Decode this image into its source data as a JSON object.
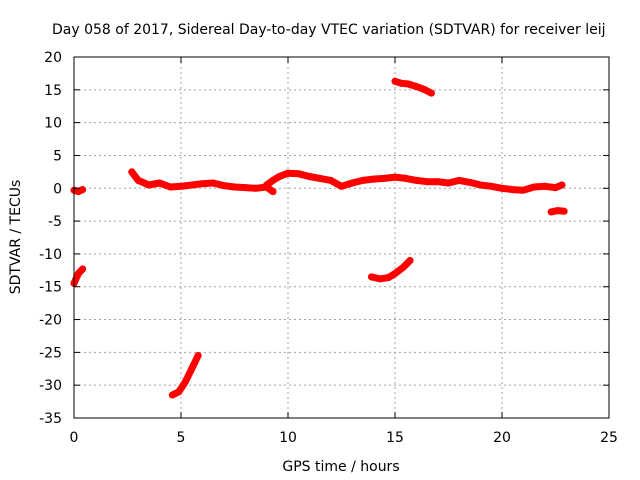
{
  "chart_data": {
    "type": "scatter",
    "title": "Day 058 of 2017, Sidereal Day-to-day VTEC variation (SDTVAR) for receiver leij",
    "xlabel": "GPS time / hours",
    "ylabel": "SDTVAR / TECUs",
    "xlim": [
      0,
      25
    ],
    "ylim": [
      -35,
      20
    ],
    "xticks": [
      0,
      5,
      10,
      15,
      20,
      25
    ],
    "yticks": [
      -35,
      -30,
      -25,
      -20,
      -15,
      -10,
      -5,
      0,
      5,
      10,
      15,
      20
    ],
    "grid": true,
    "legend": "none",
    "series_color": "#ff0000",
    "segments": [
      {
        "x": [
          0.0,
          0.2,
          0.4
        ],
        "y": [
          -0.3,
          -0.5,
          -0.2
        ]
      },
      {
        "x": [
          0.0,
          0.2,
          0.4
        ],
        "y": [
          -14.5,
          -13.0,
          -12.3
        ]
      },
      {
        "x": [
          2.7,
          3.0,
          3.5,
          4.0,
          4.5,
          5.0,
          5.5,
          6.0,
          6.5,
          7.0,
          7.5,
          8.0,
          8.5,
          9.0,
          9.3
        ],
        "y": [
          2.5,
          1.2,
          0.5,
          0.8,
          0.2,
          0.3,
          0.5,
          0.7,
          0.8,
          0.4,
          0.2,
          0.1,
          0.0,
          0.2,
          -0.5
        ]
      },
      {
        "x": [
          9.0,
          9.3,
          9.6,
          10.0,
          10.5,
          11.0,
          11.5,
          12.0,
          12.5,
          13.0,
          13.5,
          14.0,
          14.5,
          15.0,
          15.5,
          16.0,
          16.5,
          17.0,
          17.5,
          18.0,
          18.5,
          19.0,
          19.5,
          20.0,
          20.5,
          21.0,
          21.5,
          22.0,
          22.5,
          22.8
        ],
        "y": [
          0.5,
          1.2,
          1.8,
          2.3,
          2.2,
          1.8,
          1.5,
          1.2,
          0.3,
          0.8,
          1.2,
          1.4,
          1.5,
          1.7,
          1.5,
          1.2,
          1.0,
          1.0,
          0.8,
          1.2,
          0.9,
          0.5,
          0.3,
          0.0,
          -0.2,
          -0.3,
          0.2,
          0.3,
          0.1,
          0.5
        ]
      },
      {
        "x": [
          4.6,
          4.9,
          5.2,
          5.5,
          5.8
        ],
        "y": [
          -31.5,
          -31.0,
          -29.5,
          -27.5,
          -25.5
        ]
      },
      {
        "x": [
          13.9,
          14.3,
          14.7,
          15.0,
          15.4,
          15.7
        ],
        "y": [
          -13.5,
          -13.8,
          -13.6,
          -13.0,
          -12.0,
          -11.0
        ]
      },
      {
        "x": [
          15.0,
          15.3,
          15.6,
          16.0,
          16.4,
          16.7
        ],
        "y": [
          16.3,
          16.0,
          15.9,
          15.5,
          15.0,
          14.5
        ]
      },
      {
        "x": [
          22.3,
          22.6,
          22.9
        ],
        "y": [
          -3.6,
          -3.4,
          -3.5
        ]
      }
    ]
  }
}
